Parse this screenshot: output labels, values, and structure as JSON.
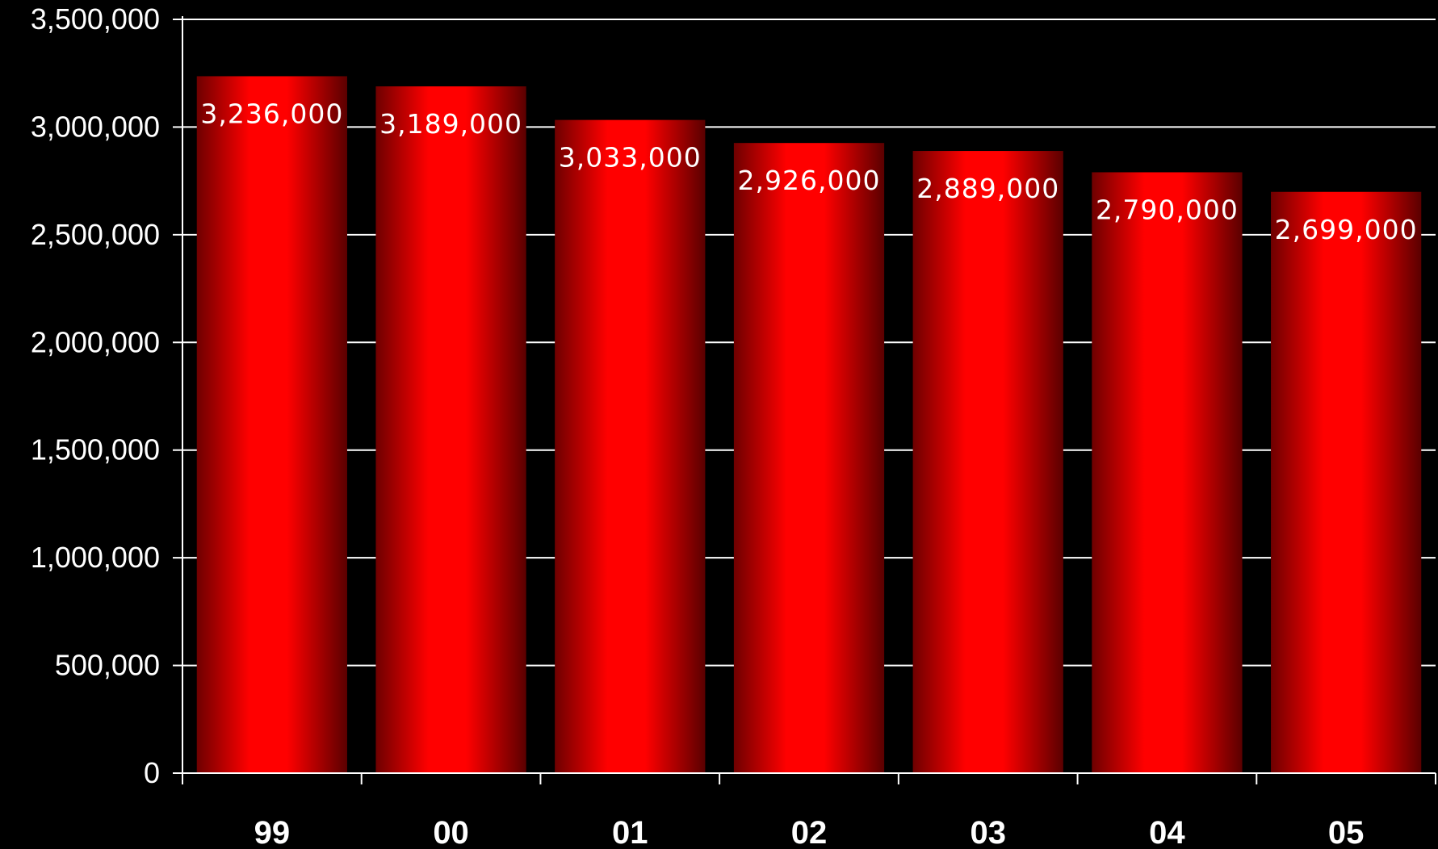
{
  "chart_data": {
    "type": "bar",
    "title": "",
    "xlabel": "",
    "ylabel": "",
    "categories": [
      "99",
      "00",
      "01",
      "02",
      "03",
      "04",
      "05"
    ],
    "values": [
      3236000,
      3189000,
      3033000,
      2926000,
      2889000,
      2790000,
      2699000
    ],
    "data_labels": [
      "3,236,000",
      "3,189,000",
      "3,033,000",
      "2,926,000",
      "2,889,000",
      "2,790,000",
      "2,699,000"
    ],
    "ylim": [
      0,
      3500000
    ],
    "yticks": [
      0,
      500000,
      1000000,
      1500000,
      2000000,
      2500000,
      3000000,
      3500000
    ],
    "ytick_labels": [
      "0",
      "500,000",
      "1,000,000",
      "1,500,000",
      "2,000,000",
      "2,500,000",
      "3,000,000",
      "3,500,000"
    ],
    "grid": true,
    "legend": "none",
    "colors": {
      "background": "#000000",
      "bar_center": "#ff0000",
      "bar_edge": "#6e0000",
      "text": "#ffffff",
      "grid": "#ffffff"
    }
  }
}
